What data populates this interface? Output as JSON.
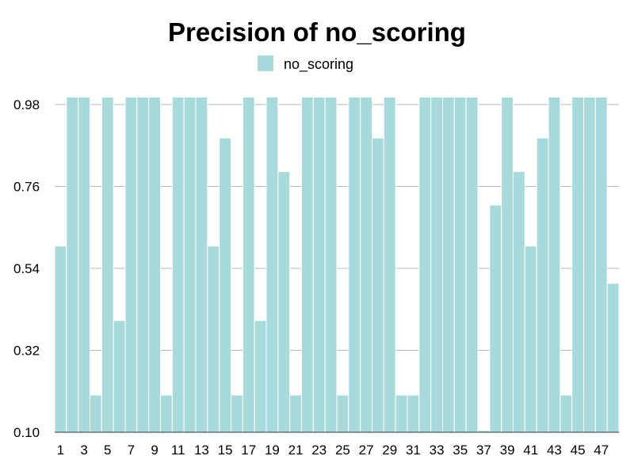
{
  "chart_data": {
    "type": "bar",
    "title": "Precision of no_scoring",
    "xlabel": "",
    "ylabel": "",
    "ylim": [
      0.1,
      1.02
    ],
    "yticks": [
      0.1,
      0.32,
      0.54,
      0.76,
      0.98
    ],
    "ytick_labels": [
      "0.10",
      "0.32",
      "0.54",
      "0.76",
      "0.98"
    ],
    "grid": true,
    "legend_position": "top-center",
    "color": "#a8dadc",
    "categories": [
      "1",
      "2",
      "3",
      "4",
      "5",
      "6",
      "7",
      "8",
      "9",
      "10",
      "11",
      "12",
      "13",
      "14",
      "15",
      "16",
      "17",
      "18",
      "19",
      "20",
      "21",
      "22",
      "23",
      "24",
      "25",
      "26",
      "27",
      "28",
      "29",
      "30",
      "31",
      "32",
      "33",
      "34",
      "35",
      "36",
      "37",
      "38",
      "39",
      "40",
      "41",
      "42",
      "43",
      "44",
      "45",
      "46",
      "47",
      "48"
    ],
    "xtick_labels": [
      "1",
      "3",
      "5",
      "7",
      "9",
      "11",
      "13",
      "15",
      "17",
      "19",
      "21",
      "23",
      "25",
      "27",
      "29",
      "31",
      "33",
      "35",
      "37",
      "39",
      "41",
      "43",
      "45",
      "47"
    ],
    "series": [
      {
        "name": "no_scoring",
        "values": [
          0.6,
          1.0,
          1.0,
          0.2,
          1.0,
          0.4,
          1.0,
          1.0,
          1.0,
          0.2,
          1.0,
          1.0,
          1.0,
          0.6,
          0.89,
          0.2,
          1.0,
          0.4,
          1.0,
          0.8,
          0.2,
          1.0,
          1.0,
          1.0,
          0.2,
          1.0,
          1.0,
          0.89,
          1.0,
          0.2,
          0.2,
          1.0,
          1.0,
          1.0,
          1.0,
          1.0,
          0.105,
          0.71,
          1.0,
          0.8,
          0.6,
          0.89,
          1.0,
          0.2,
          1.0,
          1.0,
          1.0,
          0.5
        ]
      }
    ]
  }
}
